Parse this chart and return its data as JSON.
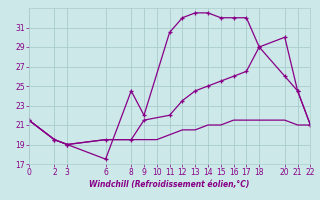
{
  "xlabel": "Windchill (Refroidissement éolien,°C)",
  "bg_color": "#cce8e8",
  "grid_color": "#aacccc",
  "line_color": "#880088",
  "xlim": [
    0,
    22
  ],
  "ylim": [
    17,
    33
  ],
  "xticks": [
    0,
    2,
    3,
    6,
    8,
    9,
    10,
    11,
    12,
    13,
    14,
    15,
    16,
    17,
    18,
    20,
    21,
    22
  ],
  "yticks": [
    17,
    19,
    21,
    23,
    25,
    27,
    29,
    31
  ],
  "line1_x": [
    0,
    2,
    3,
    6,
    8,
    9,
    11,
    12,
    13,
    14,
    15,
    16,
    17,
    18,
    20,
    21,
    22
  ],
  "line1_y": [
    21.5,
    19.5,
    19.0,
    17.5,
    24.5,
    22.0,
    30.5,
    32.0,
    32.5,
    32.5,
    32.0,
    32.0,
    32.0,
    29.0,
    30.0,
    24.5,
    21.0
  ],
  "line2_x": [
    0,
    2,
    3,
    6,
    8,
    9,
    11,
    12,
    13,
    14,
    15,
    16,
    17,
    18,
    20,
    21,
    22
  ],
  "line2_y": [
    21.5,
    19.5,
    19.0,
    19.5,
    19.5,
    21.5,
    22.0,
    23.5,
    24.5,
    25.0,
    25.5,
    26.0,
    26.5,
    29.0,
    26.0,
    24.5,
    21.0
  ],
  "line3_x": [
    0,
    2,
    3,
    6,
    8,
    9,
    10,
    11,
    12,
    13,
    14,
    15,
    16,
    17,
    18,
    20,
    21,
    22
  ],
  "line3_y": [
    21.5,
    19.5,
    19.0,
    19.5,
    19.5,
    19.5,
    19.5,
    20.0,
    20.5,
    20.5,
    21.0,
    21.0,
    21.5,
    21.5,
    21.5,
    21.5,
    21.0,
    21.0
  ],
  "xlabel_fontsize": 5.5,
  "tick_fontsize": 5.5
}
